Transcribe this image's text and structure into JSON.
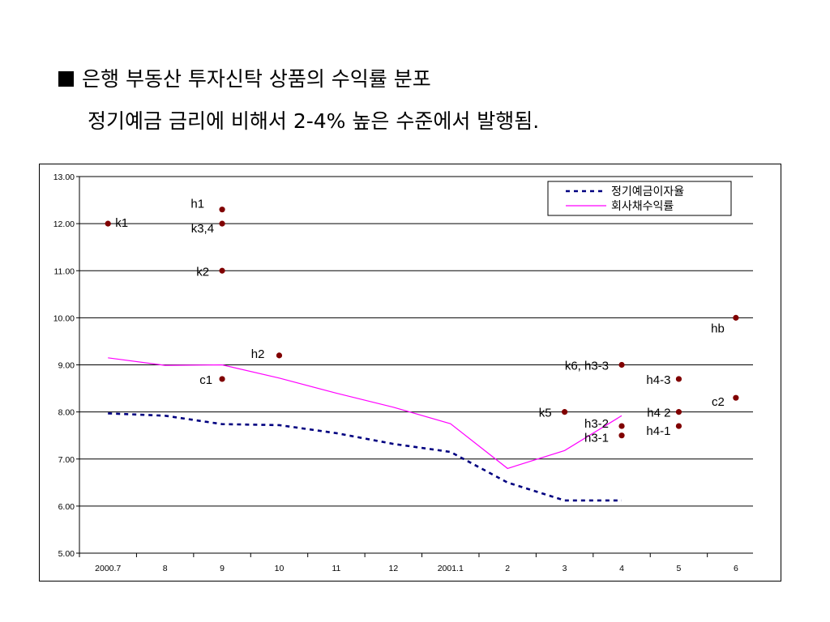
{
  "heading": "은행 부동산 투자신탁 상품의 수익률 분포",
  "subheading": "정기예금 금리에 비해서 2-4% 높은 수준에서 발행됨.",
  "chart_data": {
    "type": "line",
    "categories": [
      "2000.7",
      "8",
      "9",
      "10",
      "11",
      "12",
      "2001.1",
      "2",
      "3",
      "4",
      "5",
      "6"
    ],
    "ylim": [
      5,
      13
    ],
    "y_ticks": [
      "5.00",
      "6.00",
      "7.00",
      "8.00",
      "9.00",
      "10.00",
      "11.00",
      "12.00",
      "13.00"
    ],
    "grid": true,
    "legend_position": "top-right",
    "series": [
      {
        "name": "정기예금이자율",
        "style": "dotted",
        "color": "#000080",
        "values": [
          7.97,
          7.92,
          7.74,
          7.72,
          7.55,
          7.32,
          7.15,
          6.5,
          6.12,
          6.12,
          null,
          null
        ]
      },
      {
        "name": "회사채수익률",
        "style": "solid",
        "color": "#ff00ff",
        "values": [
          9.15,
          8.99,
          9.0,
          8.72,
          8.4,
          8.1,
          7.75,
          6.8,
          7.18,
          7.92,
          null,
          null
        ]
      }
    ],
    "points": [
      {
        "label": "k1",
        "x": "2000.7",
        "y": 12.0
      },
      {
        "label": "h1",
        "x": "9",
        "y": 12.3
      },
      {
        "label": "k3,4",
        "x": "9",
        "y": 12.0
      },
      {
        "label": "k2",
        "x": "9",
        "y": 11.0
      },
      {
        "label": "c1",
        "x": "9",
        "y": 8.7
      },
      {
        "label": "h2",
        "x": "10",
        "y": 9.2
      },
      {
        "label": "k5",
        "x": "3",
        "y": 8.0
      },
      {
        "label": "k6, h3-3",
        "x": "4",
        "y": 9.0
      },
      {
        "label": "h3-2",
        "x": "4",
        "y": 7.7
      },
      {
        "label": "h3-1",
        "x": "4",
        "y": 7.5
      },
      {
        "label": "h4-3",
        "x": "5",
        "y": 8.7
      },
      {
        "label": "h4  2",
        "x": "5",
        "y": 8.0
      },
      {
        "label": "h4-1",
        "x": "5",
        "y": 7.7
      },
      {
        "label": "hb",
        "x": "6",
        "y": 10.0
      },
      {
        "label": "c2",
        "x": "6",
        "y": 8.3
      }
    ],
    "point_color": "#800000"
  }
}
